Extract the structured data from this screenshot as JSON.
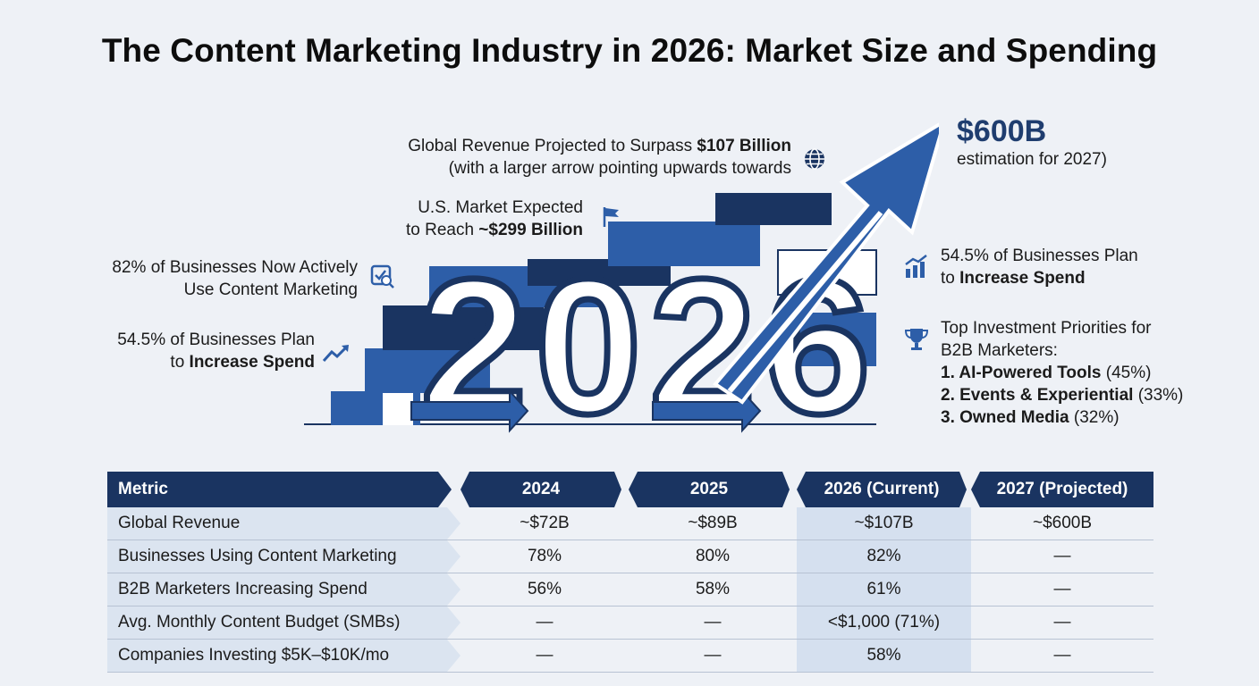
{
  "title": "The Content Marketing Industry in 2026: Market Size and Spending",
  "hero": {
    "year_graphic": "2026",
    "global_revenue": {
      "line1_pre": "Global Revenue Projected to Surpass ",
      "line1_bold": "$107 Billion",
      "line2": "(with a larger arrow pointing upwards towards",
      "icon": "globe-icon"
    },
    "projection": {
      "value": "$600B",
      "label": "estimation for 2027)"
    },
    "us_market": {
      "line1": "U.S. Market Expected",
      "line2_pre": "to Reach ",
      "line2_bold": "~$299 Billion",
      "icon": "flag-icon"
    },
    "adoption": {
      "line1": "82% of Businesses Now Actively",
      "line2": "Use Content Marketing",
      "icon": "checklist-search-icon"
    },
    "spend_left": {
      "line1": "54.5% of Businesses Plan",
      "line2_pre": "to ",
      "line2_bold": "Increase Spend",
      "icon": "trend-up-icon"
    },
    "spend_right": {
      "line1": "54.5% of Businesses Plan",
      "line2_pre": "to ",
      "line2_bold": "Increase Spend",
      "icon": "bar-chart-growth-icon"
    },
    "priorities": {
      "heading1": "Top Investment Priorities for",
      "heading2": "B2B Marketers:",
      "icon": "trophy-icon",
      "items": [
        {
          "bold": "1. AI-Powered Tools",
          "rest": " (45%)"
        },
        {
          "bold": "2. Events & Experiential",
          "rest": " (33%)"
        },
        {
          "bold": "3. Owned Media",
          "rest": " (32%)"
        }
      ]
    }
  },
  "table": {
    "headers": [
      "Metric",
      "2024",
      "2025",
      "2026 (Current)",
      "2027 (Projected)"
    ],
    "rows": [
      [
        "Global Revenue",
        "~$72B",
        "~$89B",
        "~$107B",
        "~$600B"
      ],
      [
        "Businesses Using Content Marketing",
        "78%",
        "80%",
        "82%",
        "—"
      ],
      [
        "B2B Marketers Increasing Spend",
        "56%",
        "58%",
        "61%",
        "—"
      ],
      [
        "Avg. Monthly Content Budget (SMBs)",
        "—",
        "—",
        "<$1,000 (71%)",
        "—"
      ],
      [
        "Companies Investing $5K–$10K/mo",
        "—",
        "—",
        "58%",
        "—"
      ]
    ]
  },
  "colors": {
    "navy": "#1a3461",
    "blue": "#2d5ea8",
    "light": "#d5e0ef",
    "metricbg": "#dbe4f0"
  }
}
